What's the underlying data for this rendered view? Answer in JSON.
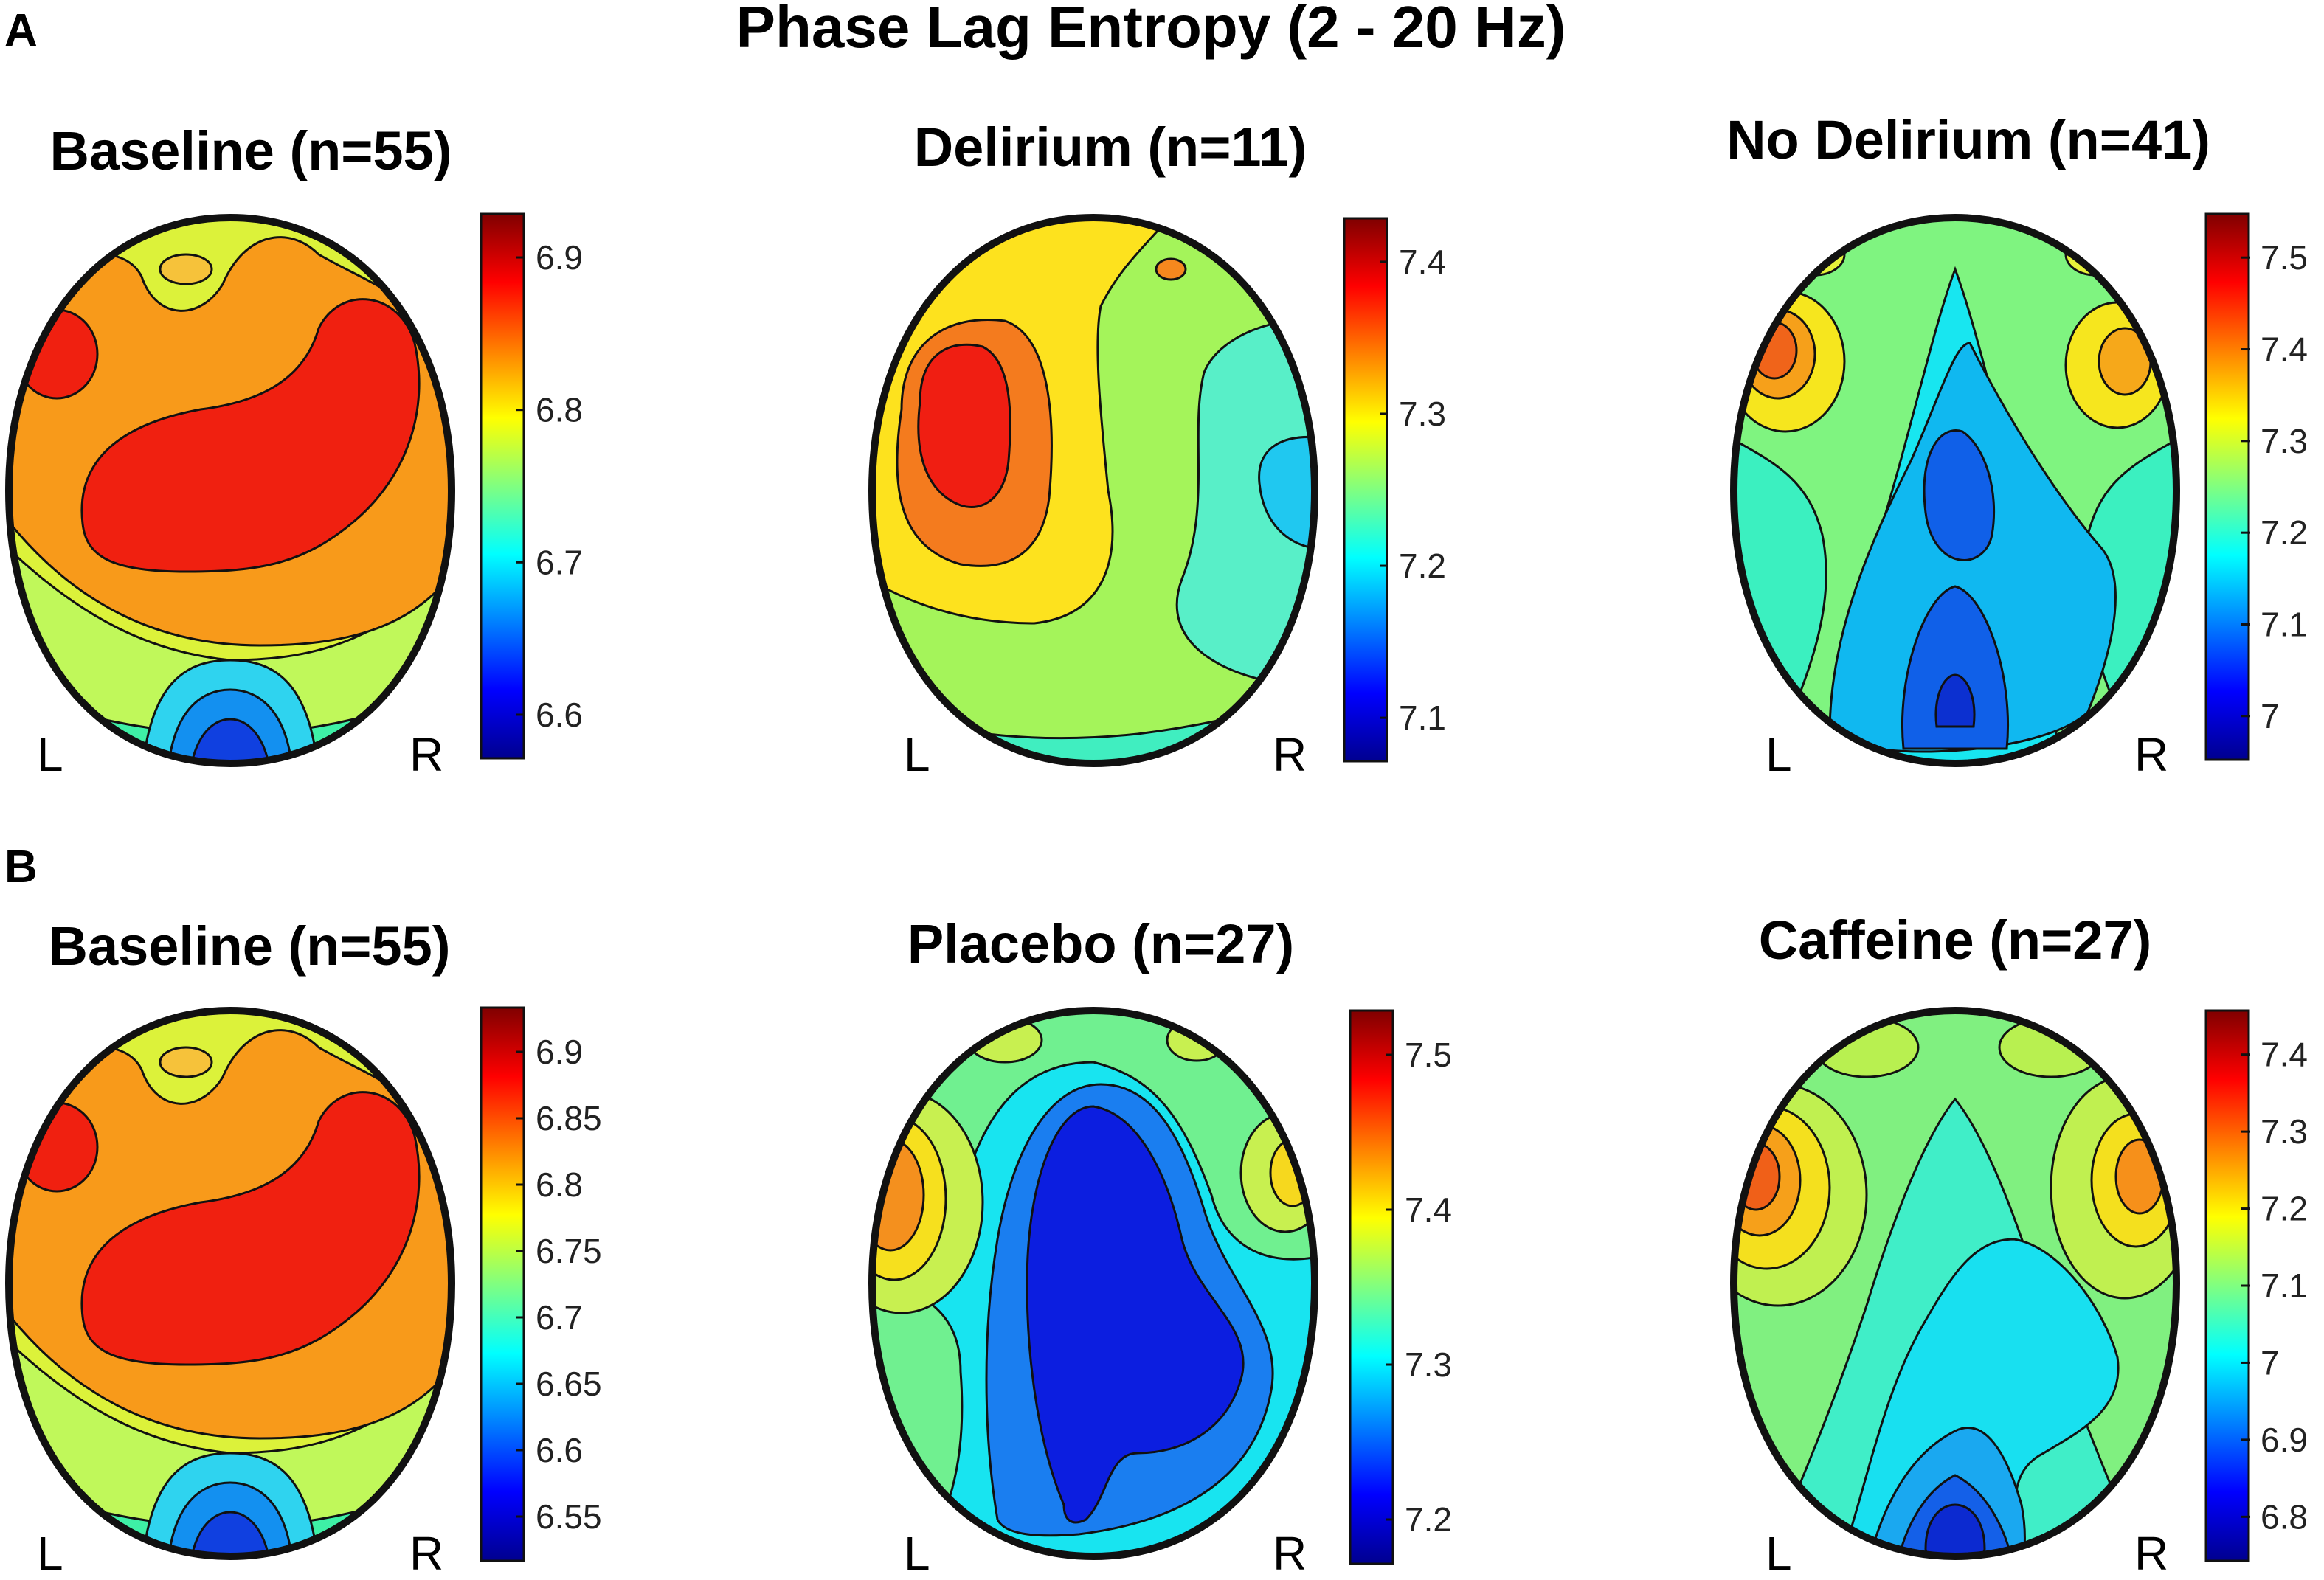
{
  "figure": {
    "title": "Phase Lag Entropy (2 - 20 Hz)",
    "section_labels": [
      "A",
      "B"
    ],
    "left_label": "L",
    "right_label": "R",
    "colormap": "jet",
    "colormap_stops": [
      "#00008f",
      "#0000ff",
      "#0080ff",
      "#00ffff",
      "#80ff80",
      "#ffff00",
      "#ff8000",
      "#ff0000",
      "#800000"
    ]
  },
  "panels": [
    {
      "id": "A-baseline",
      "section": "A",
      "title": "Baseline (n=55)",
      "colorbar": {
        "ticks": [
          "6.6",
          "6.7",
          "6.8",
          "6.9"
        ]
      }
    },
    {
      "id": "A-delirium",
      "section": "A",
      "title": "Delirium (n=11)",
      "colorbar": {
        "ticks": [
          "7.1",
          "7.2",
          "7.3",
          "7.4"
        ]
      }
    },
    {
      "id": "A-no-delirium",
      "section": "A",
      "title": "No Delirium (n=41)",
      "colorbar": {
        "ticks": [
          "7",
          "7.1",
          "7.2",
          "7.3",
          "7.4",
          "7.5"
        ]
      }
    },
    {
      "id": "B-baseline",
      "section": "B",
      "title": "Baseline (n=55)",
      "colorbar": {
        "ticks": [
          "6.55",
          "6.6",
          "6.65",
          "6.7",
          "6.75",
          "6.8",
          "6.85",
          "6.9"
        ]
      }
    },
    {
      "id": "B-placebo",
      "section": "B",
      "title": "Placebo (n=27)",
      "colorbar": {
        "ticks": [
          "7.2",
          "7.3",
          "7.4",
          "7.5"
        ]
      }
    },
    {
      "id": "B-caffeine",
      "section": "B",
      "title": "Caffeine (n=27)",
      "colorbar": {
        "ticks": [
          "6.8",
          "6.9",
          "7",
          "7.1",
          "7.2",
          "7.3",
          "7.4"
        ]
      }
    }
  ]
}
